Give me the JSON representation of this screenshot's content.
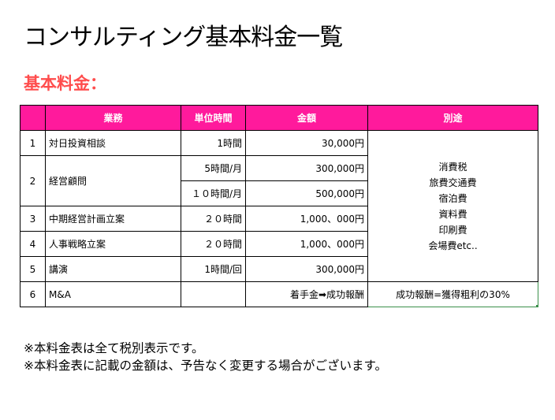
{
  "title": "コンサルティング基本料金一覧",
  "subtitle": "基本料金：",
  "table": {
    "headers": [
      "業務",
      "単位時間",
      "金額",
      "別途"
    ],
    "rows": [
      {
        "no": "1",
        "task": "対日投資相談",
        "unit": "1時間",
        "amount": "30,000円"
      },
      {
        "no": "2",
        "task": "経営顧問",
        "unit": "5時間/月",
        "amount": "300,000円"
      },
      {
        "no": "",
        "task": "",
        "unit": "１０時間/月",
        "amount": "500,000円"
      },
      {
        "no": "3",
        "task": "中期経営計画立案",
        "unit": "２０時間",
        "amount": "1,000、000円"
      },
      {
        "no": "4",
        "task": "人事戦略立案",
        "unit": "２０時間",
        "amount": "1,000、000円"
      },
      {
        "no": "5",
        "task": "講演",
        "unit": "1時間/回",
        "amount": "300,000円"
      },
      {
        "no": "6",
        "task": "M&A",
        "unit": "",
        "amount": "着手金➡成功報酬"
      }
    ],
    "extras": [
      "消費税",
      "旅費交通費",
      "宿泊費",
      "資料費",
      "印刷費",
      "会場費etc.."
    ],
    "extra_last": "成功報酬=獲得粗利の30%"
  },
  "notes": [
    "※本料金表は全て税別表示です。",
    "※本料金表に記載の金額は、予告なく変更する場合がございます。"
  ],
  "colors": {
    "header_bg": "#ff1a9c",
    "subtitle": "#ff4d4d",
    "selected_border": "#3a8f4a"
  }
}
